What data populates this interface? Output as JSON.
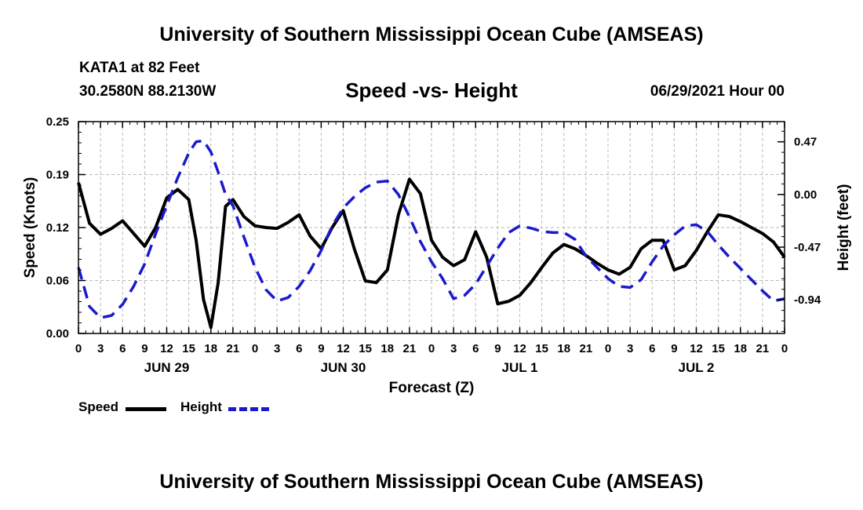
{
  "header": {
    "title_top": "University of Southern Mississippi Ocean Cube (AMSEAS)",
    "station": "KATA1 at 82 Feet",
    "coords": "30.2580N  88.2130W",
    "chart_subtitle": "Speed -vs- Height",
    "run_time": "06/29/2021 Hour 00",
    "title_bottom": "University of Southern Mississippi Ocean Cube (AMSEAS)"
  },
  "legend": {
    "speed_label": "Speed",
    "height_label": "Height"
  },
  "colors": {
    "speed": "#000000",
    "height": "#1a1acc",
    "grid": "#bbbbbb"
  },
  "chart_data": {
    "type": "line",
    "xlabel": "Forecast (Z)",
    "ylabel_left": "Speed (Knots)",
    "ylabel_right": "Height (feet)",
    "xlim": [
      0,
      96
    ],
    "ylim_left": [
      0,
      0.25
    ],
    "ylim_right": [
      -1.24,
      0.65
    ],
    "left_ticks": [
      0,
      0.0625,
      0.125,
      0.1875,
      0.25
    ],
    "left_tick_labels": [
      "0.00",
      "0.06",
      "0.12",
      "0.19",
      "0.25"
    ],
    "right_ticks": [
      0.47,
      0.0,
      -0.47,
      -0.94
    ],
    "right_tick_labels": [
      "0.47",
      "0.00",
      "-0.47",
      "-0.94"
    ],
    "x_ticks": [
      0,
      3,
      6,
      9,
      12,
      15,
      18,
      21,
      24,
      27,
      30,
      33,
      36,
      39,
      42,
      45,
      48,
      51,
      54,
      57,
      60,
      63,
      66,
      69,
      72,
      75,
      78,
      81,
      84,
      87,
      90,
      93,
      96
    ],
    "x_tick_labels": [
      "0",
      "3",
      "6",
      "9",
      "12",
      "15",
      "18",
      "21",
      "0",
      "3",
      "6",
      "9",
      "12",
      "15",
      "18",
      "21",
      "0",
      "3",
      "6",
      "9",
      "12",
      "15",
      "18",
      "21",
      "0",
      "3",
      "6",
      "9",
      "12",
      "15",
      "18",
      "21",
      "0"
    ],
    "date_labels": [
      {
        "text": "JUN 29",
        "x": 12
      },
      {
        "text": "JUN 30",
        "x": 36
      },
      {
        "text": "JUL 1",
        "x": 60
      },
      {
        "text": "JUL 2",
        "x": 84
      }
    ],
    "series": [
      {
        "name": "Speed",
        "axis": "left",
        "style": "solid",
        "x": [
          0,
          1.5,
          3,
          4.5,
          6,
          7.5,
          9,
          10.5,
          12,
          13.5,
          15,
          16,
          17,
          18,
          19,
          20,
          21,
          22.5,
          24,
          25.5,
          27,
          28.5,
          30,
          31.5,
          33,
          34.5,
          36,
          37.5,
          39,
          40.5,
          42,
          43.5,
          45,
          46.5,
          48,
          49.5,
          51,
          52.5,
          54,
          55.5,
          57,
          58.5,
          60,
          61.5,
          63,
          64.5,
          66,
          67.5,
          69,
          70.5,
          72,
          73.5,
          75,
          76.5,
          78,
          79.5,
          81,
          82.5,
          84,
          85.5,
          87,
          88.5,
          90,
          91.5,
          93,
          94.5,
          96
        ],
        "values": [
          0.178,
          0.13,
          0.117,
          0.124,
          0.133,
          0.118,
          0.103,
          0.125,
          0.16,
          0.17,
          0.158,
          0.11,
          0.04,
          0.007,
          0.06,
          0.15,
          0.158,
          0.138,
          0.127,
          0.125,
          0.124,
          0.131,
          0.14,
          0.115,
          0.1,
          0.125,
          0.145,
          0.1,
          0.062,
          0.06,
          0.075,
          0.14,
          0.182,
          0.165,
          0.11,
          0.09,
          0.08,
          0.087,
          0.12,
          0.09,
          0.035,
          0.038,
          0.045,
          0.06,
          0.078,
          0.095,
          0.105,
          0.1,
          0.092,
          0.083,
          0.075,
          0.07,
          0.078,
          0.1,
          0.11,
          0.11,
          0.075,
          0.08,
          0.098,
          0.12,
          0.14,
          0.138,
          0.132,
          0.125,
          0.118,
          0.108,
          0.09
        ]
      },
      {
        "name": "Height",
        "axis": "right",
        "style": "dashed",
        "x": [
          0,
          1.5,
          3,
          4.5,
          6,
          7.5,
          9,
          10.5,
          12,
          13.5,
          15,
          16,
          17,
          18,
          19,
          20,
          21,
          22.5,
          24,
          25.5,
          27,
          28.5,
          30,
          31.5,
          33,
          34.5,
          36,
          37.5,
          39,
          40.5,
          42,
          43.5,
          45,
          46.5,
          48,
          49.5,
          51,
          52.5,
          54,
          55.5,
          57,
          58.5,
          60,
          61.5,
          63,
          64.5,
          66,
          67.5,
          69,
          70.5,
          72,
          73.5,
          75,
          76.5,
          78,
          79.5,
          81,
          82.5,
          84,
          85.5,
          87,
          88.5,
          90,
          91.5,
          93,
          94.5,
          96
        ],
        "values": [
          -0.65,
          -1.0,
          -1.1,
          -1.08,
          -0.98,
          -0.82,
          -0.62,
          -0.35,
          -0.1,
          0.15,
          0.37,
          0.47,
          0.48,
          0.38,
          0.2,
          0.0,
          -0.1,
          -0.38,
          -0.65,
          -0.85,
          -0.95,
          -0.92,
          -0.82,
          -0.68,
          -0.5,
          -0.28,
          -0.12,
          -0.02,
          0.06,
          0.11,
          0.12,
          0.0,
          -0.2,
          -0.42,
          -0.6,
          -0.75,
          -0.93,
          -0.9,
          -0.8,
          -0.64,
          -0.48,
          -0.34,
          -0.28,
          -0.3,
          -0.33,
          -0.34,
          -0.34,
          -0.4,
          -0.55,
          -0.65,
          -0.75,
          -0.82,
          -0.83,
          -0.76,
          -0.6,
          -0.46,
          -0.36,
          -0.28,
          -0.27,
          -0.33,
          -0.45,
          -0.56,
          -0.66,
          -0.76,
          -0.86,
          -0.95,
          -0.93
        ]
      }
    ]
  }
}
